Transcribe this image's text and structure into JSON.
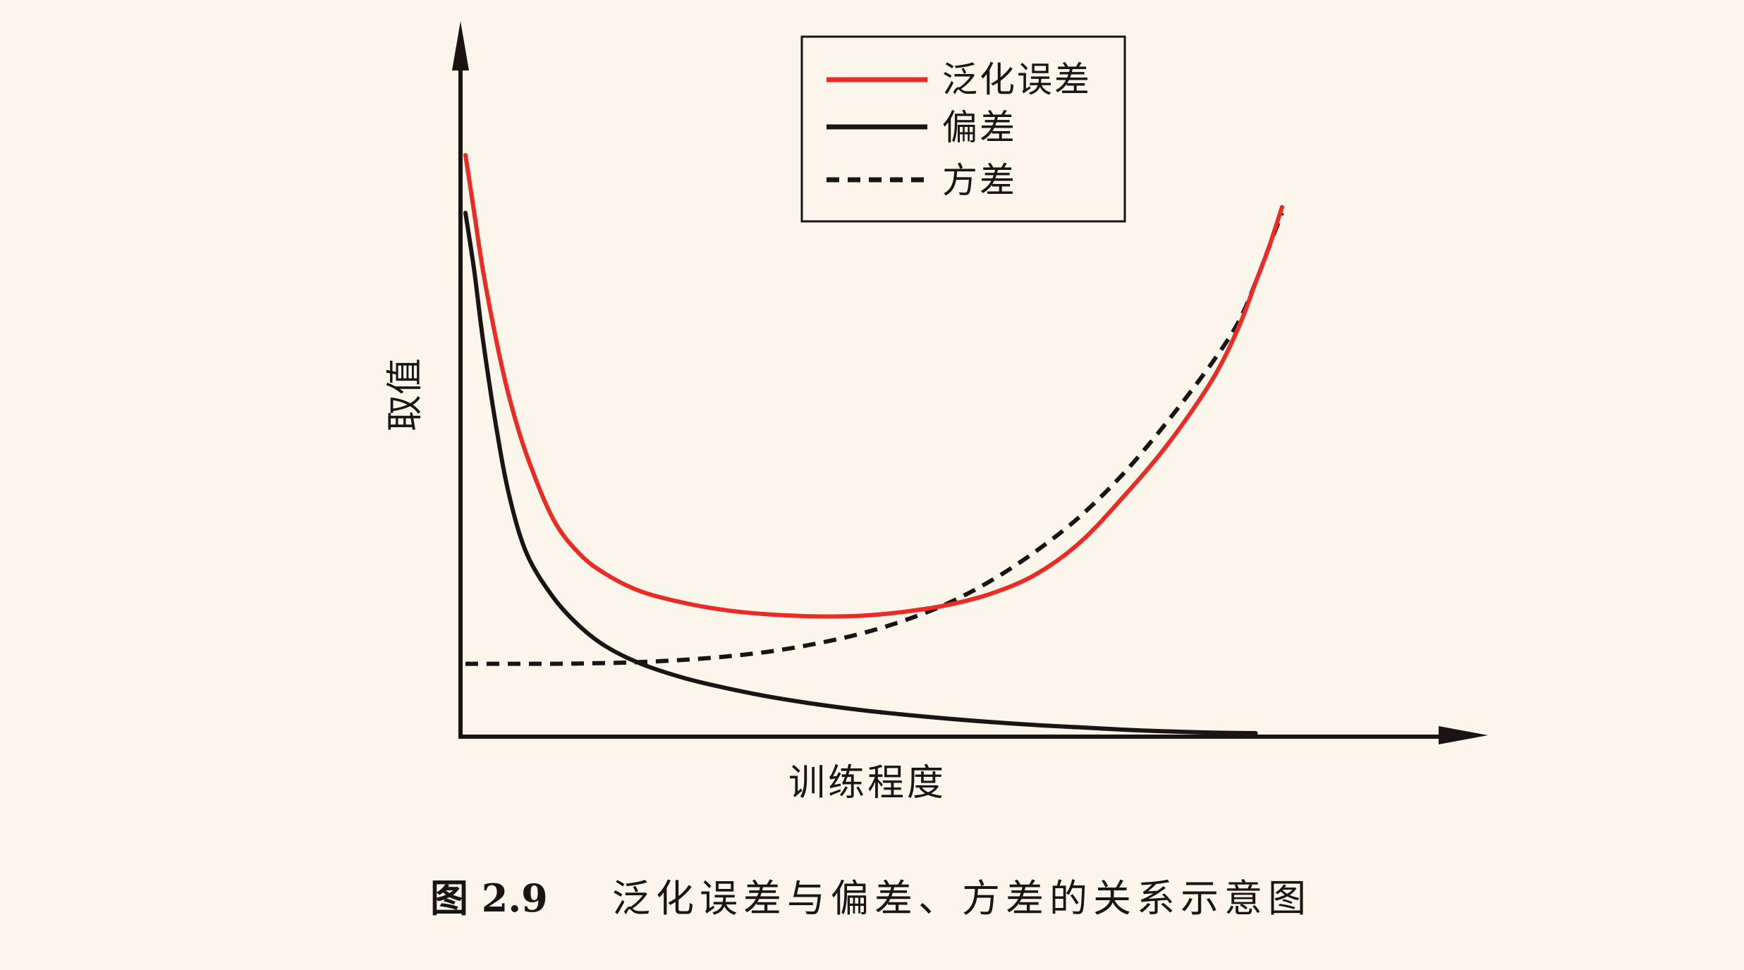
{
  "colors": {
    "background": "#fbf6ec",
    "axis": "#1a1414",
    "generalization_error": "#ee2a24",
    "bias": "#1a1414",
    "variance": "#1a1414"
  },
  "caption": {
    "number": "图 2.9",
    "text": "泛化误差与偏差、方差的关系示意图"
  },
  "chart_data": {
    "type": "line",
    "xlabel": "训练程度",
    "ylabel": "取值",
    "xlim": [
      0,
      10
    ],
    "ylim": [
      0,
      10
    ],
    "grid": false,
    "ticks": false,
    "legend_position": "top-right",
    "series": [
      {
        "name": "泛化误差",
        "style": "solid",
        "color": "#ee2a24",
        "x": [
          0.0,
          0.1,
          0.2,
          0.35,
          0.5,
          0.7,
          1.0,
          1.3,
          1.6,
          2.0,
          2.5,
          3.0,
          3.5,
          4.0,
          4.5,
          5.0,
          5.5,
          6.0,
          6.5,
          7.0,
          7.5,
          8.0,
          8.5,
          8.8,
          9.0,
          9.15,
          9.3
        ],
        "y": [
          10.0,
          9.0,
          8.0,
          6.8,
          5.8,
          4.8,
          3.7,
          3.1,
          2.75,
          2.45,
          2.25,
          2.12,
          2.05,
          2.02,
          2.03,
          2.1,
          2.22,
          2.42,
          2.75,
          3.3,
          4.1,
          5.0,
          6.1,
          7.0,
          7.8,
          8.4,
          9.1
        ]
      },
      {
        "name": "偏差",
        "style": "solid",
        "color": "#1a1414",
        "x": [
          0.0,
          0.1,
          0.2,
          0.35,
          0.5,
          0.7,
          1.0,
          1.3,
          1.6,
          2.0,
          2.5,
          3.0,
          3.5,
          4.0,
          4.5,
          5.0,
          5.5,
          6.0,
          6.5,
          7.0,
          7.5,
          8.0,
          8.5,
          9.0
        ],
        "y": [
          9.0,
          8.0,
          6.8,
          5.3,
          4.1,
          3.1,
          2.35,
          1.85,
          1.5,
          1.2,
          0.95,
          0.77,
          0.62,
          0.5,
          0.4,
          0.32,
          0.25,
          0.19,
          0.14,
          0.1,
          0.06,
          0.03,
          0.01,
          0.0
        ]
      },
      {
        "name": "方差",
        "style": "dashed",
        "color": "#1a1414",
        "x": [
          0.0,
          0.5,
          1.0,
          1.5,
          2.0,
          2.5,
          3.0,
          3.5,
          4.0,
          4.5,
          5.0,
          5.5,
          6.0,
          6.5,
          7.0,
          7.5,
          8.0,
          8.5,
          8.8,
          9.0,
          9.15,
          9.3
        ],
        "y": [
          1.2,
          1.2,
          1.2,
          1.21,
          1.23,
          1.27,
          1.33,
          1.42,
          1.55,
          1.72,
          1.95,
          2.25,
          2.65,
          3.15,
          3.75,
          4.5,
          5.4,
          6.4,
          7.1,
          7.8,
          8.4,
          9.0
        ]
      }
    ]
  }
}
